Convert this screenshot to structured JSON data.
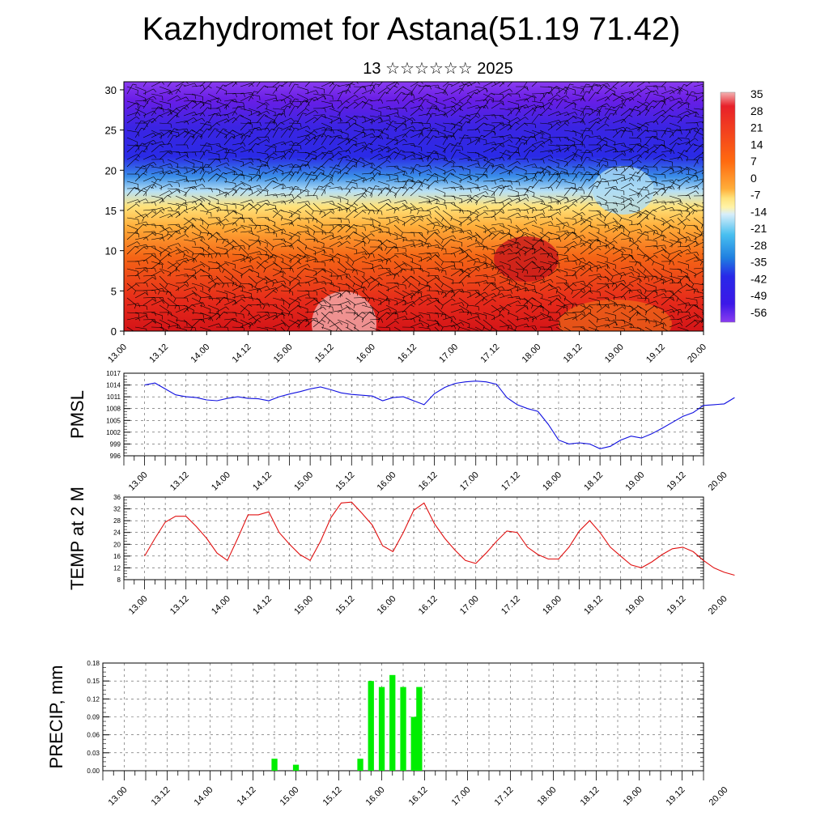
{
  "title": "Kazhydromet for Astana(51.19 71.42)",
  "subtitle": "13 ☆☆☆☆☆☆ 2025",
  "x_tick_labels": [
    "13.00",
    "13.12",
    "14.00",
    "14.12",
    "15.00",
    "15.12",
    "16.00",
    "16.12",
    "17.00",
    "17.12",
    "18.00",
    "18.12",
    "19.00",
    "19.12",
    "20.00"
  ],
  "chart_data": [
    {
      "type": "heatmap",
      "name": "cross-section",
      "x": [
        "13.00",
        "13.12",
        "14.00",
        "14.12",
        "15.00",
        "15.12",
        "16.00",
        "16.12",
        "17.00",
        "17.12",
        "18.00",
        "18.12",
        "19.00",
        "19.12",
        "20.00"
      ],
      "y_ticks": [
        0,
        5,
        10,
        15,
        20,
        25,
        30
      ],
      "ylim": [
        0,
        31
      ],
      "colorbar_labels": [
        "35",
        "28",
        "21",
        "14",
        "7",
        "0",
        "-7",
        "-14",
        "-21",
        "-28",
        "-35",
        "-42",
        "-49",
        "-56"
      ],
      "colors": [
        "#f4b3b3",
        "#e8202a",
        "#ff7f10",
        "#ffae3a",
        "#ffe27a",
        "#fff7c0",
        "#cfe9f8",
        "#48bff0",
        "#1f7fe0",
        "#2828e8",
        "#5a14e0",
        "#8a3cf0"
      ],
      "overlay": "wind barbs"
    },
    {
      "type": "line",
      "name": "PMSL",
      "ylabel": "PMSL",
      "ylim": [
        996,
        1017
      ],
      "y_ticks": [
        996,
        999,
        1002,
        1005,
        1008,
        1011,
        1014,
        1017
      ],
      "color": "#1010e0",
      "x_start": 0,
      "x_step": 0.25,
      "values": [
        1014,
        1014.5,
        1013,
        1011.5,
        1011,
        1010.8,
        1010.2,
        1010,
        1010.6,
        1011,
        1010.6,
        1010.5,
        1010,
        1011,
        1011.7,
        1012.3,
        1013,
        1013.5,
        1012.8,
        1012,
        1011.6,
        1011.4,
        1011.2,
        1010,
        1010.8,
        1011,
        1010,
        1009,
        1011.8,
        1013.4,
        1014.4,
        1014.8,
        1015,
        1014.8,
        1014.2,
        1010.8,
        1009,
        1008,
        1007.3,
        1004,
        1000,
        999,
        999.3,
        999,
        997.8,
        998.4,
        1000,
        1001,
        1000.5,
        1001.6,
        1003,
        1004.5,
        1006,
        1007,
        1008.8,
        1009,
        1009.2,
        1010.8
      ]
    },
    {
      "type": "line",
      "name": "TEMP at 2 M",
      "ylabel": "TEMP at 2 M",
      "ylim": [
        8,
        36
      ],
      "y_ticks": [
        8,
        12,
        16,
        20,
        24,
        28,
        32,
        36
      ],
      "color": "#e01010",
      "x_start": 0,
      "x_step": 0.25,
      "values": [
        16,
        22,
        27.5,
        29.5,
        29.5,
        26,
        22,
        17,
        14.5,
        22,
        30,
        30,
        31,
        24,
        20,
        16.5,
        14.5,
        21,
        29,
        34,
        34.3,
        30.5,
        26.5,
        19.5,
        17.5,
        24,
        31.5,
        34,
        27,
        22,
        18,
        14.5,
        13.5,
        17,
        21,
        24.5,
        24,
        19,
        16.5,
        15,
        15,
        19,
        24.5,
        28,
        24,
        19,
        16,
        13,
        12,
        14,
        16.5,
        18.5,
        19,
        17.5,
        14.5,
        12,
        10.5,
        9.5
      ]
    },
    {
      "type": "bar",
      "name": "PRECIP, mm",
      "ylabel": "PRECIP, mm",
      "ylim": [
        0,
        0.18
      ],
      "y_ticks": [
        "0.00",
        "0.03",
        "0.06",
        "0.09",
        "0.12",
        "0.15",
        "0.18"
      ],
      "color": "#00ee00",
      "x_step": 0.25,
      "bar_x": [
        3.5,
        4.0,
        5.5,
        5.75,
        6.0,
        6.25,
        6.5,
        6.75,
        6.875
      ],
      "bar_values": [
        0.02,
        0.01,
        0.02,
        0.15,
        0.14,
        0.16,
        0.14,
        0.09,
        0.14
      ]
    }
  ]
}
